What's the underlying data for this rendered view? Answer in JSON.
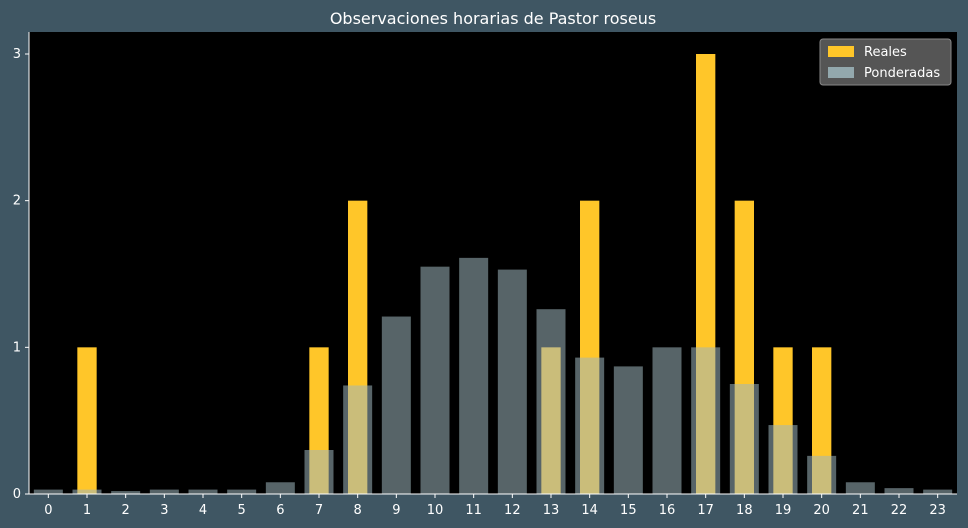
{
  "chart_data": {
    "type": "bar",
    "title": "Observaciones horarias de Pastor roseus",
    "xlabel": "",
    "ylabel": "",
    "categories": [
      "0",
      "1",
      "2",
      "3",
      "4",
      "5",
      "6",
      "7",
      "8",
      "9",
      "10",
      "11",
      "12",
      "13",
      "14",
      "15",
      "16",
      "17",
      "18",
      "19",
      "20",
      "21",
      "22",
      "23"
    ],
    "ylim": [
      0,
      3.15
    ],
    "yticks": [
      0,
      1,
      2,
      3
    ],
    "legend_position": "top-right",
    "grid": false,
    "series": [
      {
        "name": "Reales",
        "color": "#ffc629",
        "values": [
          0,
          1,
          0,
          0,
          0,
          0,
          0,
          1,
          2,
          0,
          0,
          0,
          0,
          1,
          2,
          0,
          0,
          3,
          2,
          1,
          1,
          0,
          0,
          0
        ]
      },
      {
        "name": "Ponderadas",
        "color": "#9fb7bd",
        "values": [
          0.03,
          0.03,
          0.02,
          0.03,
          0.03,
          0.03,
          0.08,
          0.3,
          0.74,
          1.21,
          1.55,
          1.61,
          1.53,
          1.26,
          0.93,
          0.87,
          1.0,
          1.0,
          0.75,
          0.47,
          0.26,
          0.08,
          0.04,
          0.03
        ]
      }
    ]
  }
}
